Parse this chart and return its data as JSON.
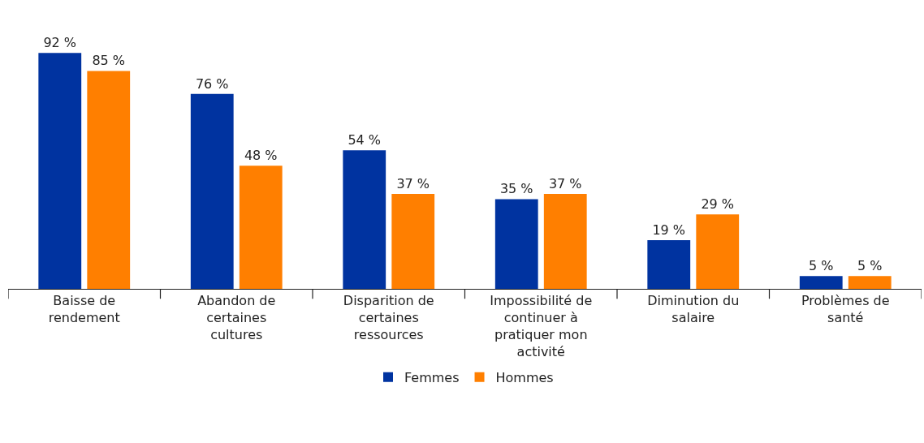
{
  "chart_data": {
    "type": "bar",
    "categories": [
      "Baisse de rendement",
      "Abandon de certaines cultures",
      "Disparition de certaines ressources",
      "Impossibilité de continuer à pratiquer mon activité",
      "Diminution du salaire",
      "Problèmes de santé"
    ],
    "series": [
      {
        "name": "Femmes",
        "color": "#0033a0",
        "values": [
          92,
          76,
          54,
          35,
          19,
          5
        ],
        "value_labels": [
          "92 %",
          "76 %",
          "54 %",
          "35 %",
          "19 %",
          "5 %"
        ]
      },
      {
        "name": "Hommes",
        "color": "#ff7f00",
        "values": [
          85,
          48,
          37,
          37,
          29,
          5
        ],
        "value_labels": [
          "85 %",
          "48 %",
          "37 %",
          "37 %",
          "29 %",
          "5 %"
        ]
      }
    ],
    "grid": false,
    "legend": "bottom"
  }
}
